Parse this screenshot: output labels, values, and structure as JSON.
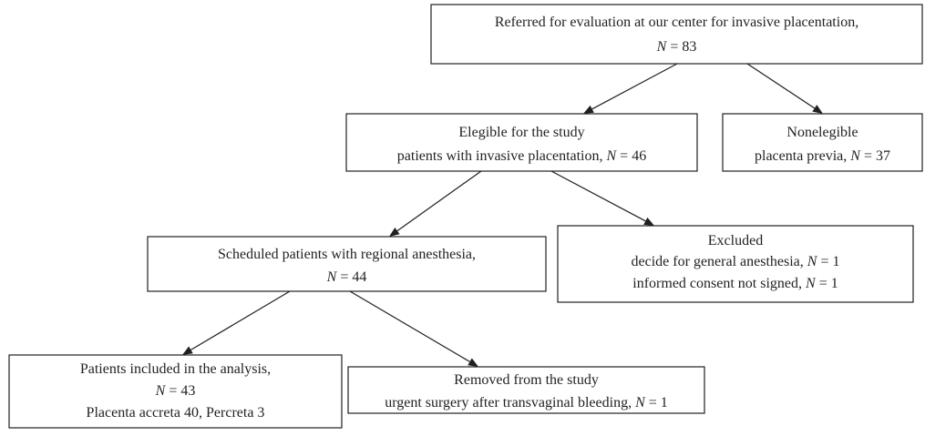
{
  "nodes": [
    {
      "lines": [
        [
          {
            "t": "Referred for evaluation at our center for invasive placentation,"
          }
        ],
        [
          {
            "t": "N",
            "i": true
          },
          {
            "t": " = 83"
          }
        ]
      ]
    },
    {
      "lines": [
        [
          {
            "t": "Elegible for the study"
          }
        ],
        [
          {
            "t": "patients with invasive placentation, "
          },
          {
            "t": "N",
            "i": true
          },
          {
            "t": " = 46"
          }
        ]
      ]
    },
    {
      "lines": [
        [
          {
            "t": "Nonelegible"
          }
        ],
        [
          {
            "t": "placenta previa, "
          },
          {
            "t": "N",
            "i": true
          },
          {
            "t": " = 37"
          }
        ]
      ]
    },
    {
      "lines": [
        [
          {
            "t": "Scheduled patients with regional anesthesia,"
          }
        ],
        [
          {
            "t": "N",
            "i": true
          },
          {
            "t": " = 44"
          }
        ]
      ]
    },
    {
      "lines": [
        [
          {
            "t": "Excluded"
          }
        ],
        [
          {
            "t": "decide for general anesthesia, "
          },
          {
            "t": "N",
            "i": true
          },
          {
            "t": " = 1"
          }
        ],
        [
          {
            "t": "informed consent not signed, "
          },
          {
            "t": "N",
            "i": true
          },
          {
            "t": " = 1"
          }
        ]
      ]
    },
    {
      "lines": [
        [
          {
            "t": "Patients included in the analysis,"
          }
        ],
        [
          {
            "t": "N",
            "i": true
          },
          {
            "t": " = 43"
          }
        ],
        [
          {
            "t": "Placenta accreta 40, Percreta 3"
          }
        ]
      ]
    },
    {
      "lines": [
        [
          {
            "t": "Removed from the study"
          }
        ],
        [
          {
            "t": "urgent surgery after transvaginal bleeding, "
          },
          {
            "t": "N",
            "i": true
          },
          {
            "t": " = 1"
          }
        ]
      ]
    }
  ]
}
